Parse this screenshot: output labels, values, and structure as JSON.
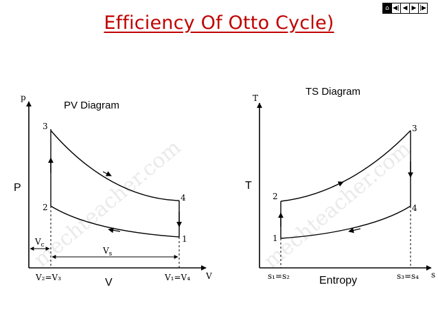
{
  "title": "Efficiency Of Otto Cycle)",
  "nav": {
    "home": "⌂",
    "first": "◀|",
    "prev": "◀",
    "next": "▶",
    "last": "|▶"
  },
  "watermark": "mechteacher.com",
  "pv": {
    "title": "PV Diagram",
    "big_y": "P",
    "big_x": "V",
    "axis_y": "p",
    "axis_x": "V",
    "pt1": "1",
    "pt2": "2",
    "pt3": "3",
    "pt4": "4",
    "vc": "V",
    "vc_sub": "c",
    "vs": "V",
    "vs_sub": "s",
    "v23": "V₂=V₃",
    "v14": "V₁=V₄"
  },
  "ts": {
    "title": "TS Diagram",
    "big_y": "T",
    "big_x": "Entropy",
    "axis_y": "T",
    "axis_x": "s",
    "pt1": "1",
    "pt2": "2",
    "pt3": "3",
    "pt4": "4",
    "s12": "s₁=s₂",
    "s34": "s₃=s₄"
  }
}
